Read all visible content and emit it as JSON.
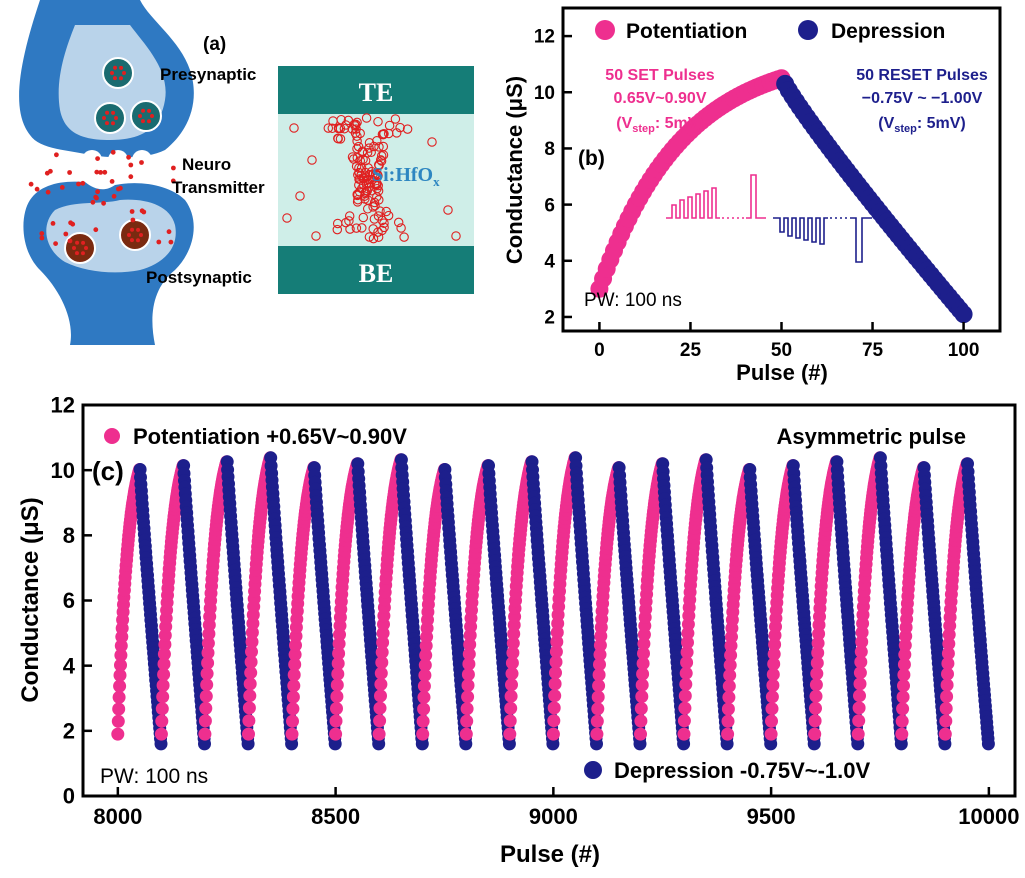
{
  "colors": {
    "potentiation": "#ee2f8f",
    "depression": "#1d1f8c",
    "electrode": "#157d77",
    "oxide": "#cfeee8",
    "synapse": "#2f79c2",
    "vesicle": "#1a6b70",
    "post_vesicle": "#7a2a10",
    "ion": "#e02020"
  },
  "panel_a": {
    "label": "(a)",
    "presynaptic": "Presynaptic",
    "neuro": "Neuro",
    "transmitter": "Transmitter",
    "postsynaptic": "Postsynaptic",
    "te": "TE",
    "be": "BE",
    "oxide_main": "Si:HfO",
    "oxide_sub": "x"
  },
  "panel_b": {
    "label": "(b)",
    "legend": {
      "potentiation": "Potentiation",
      "depression": "Depression"
    },
    "ylabel": "Conductance (μS)",
    "xlabel": "Pulse (#)",
    "xticks": [
      "0",
      "25",
      "50",
      "75",
      "100"
    ],
    "yticks": [
      "2",
      "4",
      "6",
      "8",
      "10",
      "12"
    ],
    "set_note": {
      "l1": "50 SET Pulses",
      "l2": "0.65V~0.90V",
      "l3_pre": "(V",
      "l3_sub": "step",
      "l3_post": ": 5mV)"
    },
    "reset_note": {
      "l1": "50 RESET Pulses",
      "l2": "−0.75V ~ −1.00V",
      "l3_pre": "(V",
      "l3_sub": "step",
      "l3_post": ": 5mV)"
    },
    "pw": "PW: 100 ns"
  },
  "panel_c": {
    "label": "(c)",
    "legend": {
      "potentiation": "Potentiation +0.65V~0.90V",
      "depression": "Depression -0.75V~-1.0V"
    },
    "note": "Asymmetric pulse",
    "ylabel": "Conductance (μS)",
    "xlabel": "Pulse (#)",
    "xticks": [
      "8000",
      "8500",
      "9000",
      "9500",
      "10000"
    ],
    "yticks": [
      "0",
      "2",
      "4",
      "6",
      "8",
      "10",
      "12"
    ],
    "pw": "PW: 100 ns"
  },
  "chart_data": [
    {
      "type": "scatter",
      "xlim": [
        -10,
        110
      ],
      "ylim": [
        1.5,
        13
      ],
      "x_start": 0,
      "period": 100,
      "pulses_per_phase": 50,
      "g_min": 3.0,
      "g_max": 10.5,
      "g_end": 2.1,
      "series": [
        {
          "name": "Potentiation",
          "x_range": [
            0,
            50
          ],
          "y_range": [
            3.0,
            10.5
          ]
        },
        {
          "name": "Depression",
          "x_range": [
            51,
            100
          ],
          "y_range": [
            10.3,
            2.1
          ]
        }
      ]
    },
    {
      "type": "scatter",
      "xlim": [
        7920,
        10060
      ],
      "ylim": [
        0,
        12
      ],
      "x_start": 8000,
      "period": 100,
      "pulses_per_phase": 50,
      "g_min": 1.9,
      "g_max": 10.2,
      "g_end": 1.6,
      "cycles": 20,
      "series": [
        {
          "name": "Potentiation +0.65V~0.90V",
          "y_range": [
            1.9,
            10.2
          ]
        },
        {
          "name": "Depression -0.75V~-1.0V",
          "y_range": [
            10.2,
            1.6
          ]
        }
      ]
    }
  ]
}
